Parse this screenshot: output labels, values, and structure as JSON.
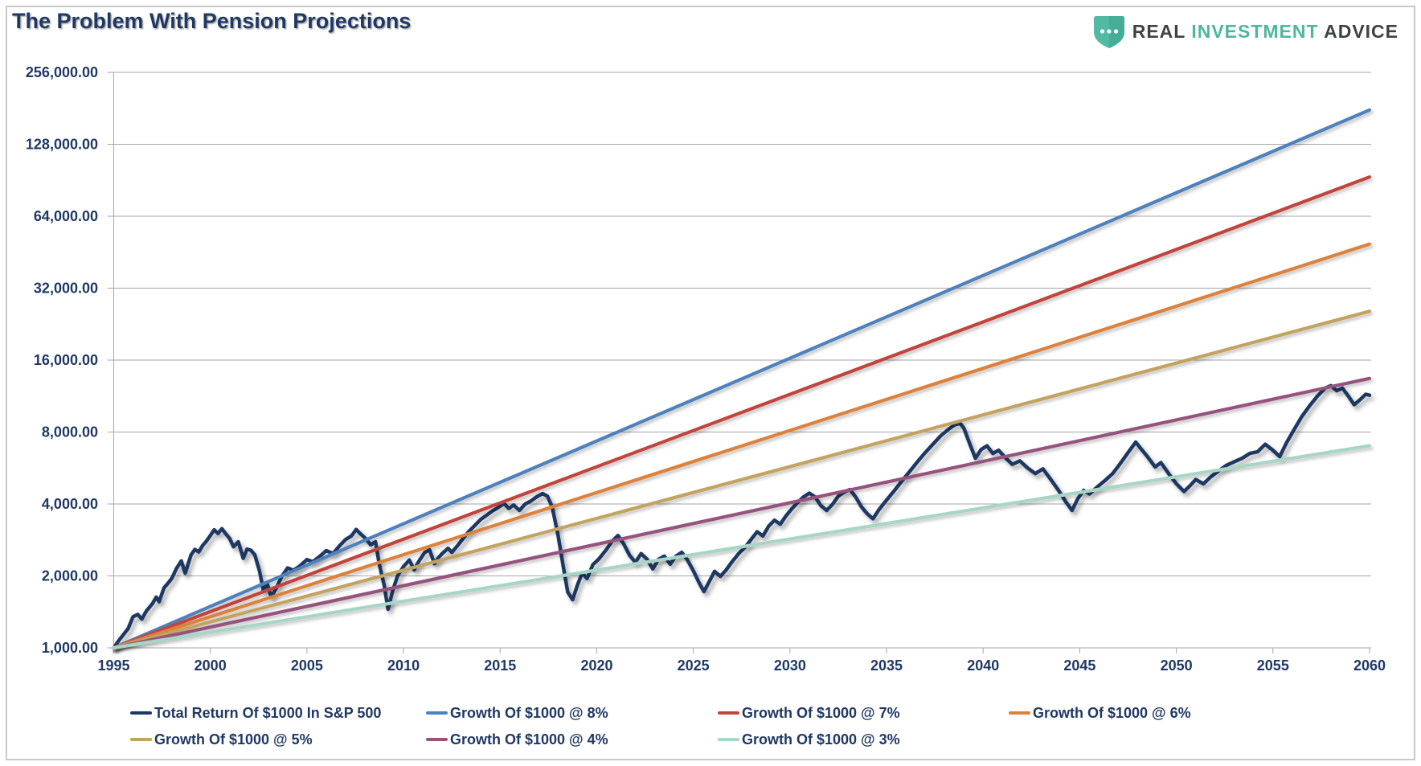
{
  "header": {
    "title": "The Problem With Pension Projections"
  },
  "logo": {
    "shield_icon": "shield-with-three-dots",
    "word1": "REAL",
    "word2": "INVESTMENT",
    "word3": "ADVICE",
    "teal": "#4FB79E",
    "dark": "#3F4245"
  },
  "colors": {
    "navy": "#1F3864",
    "blue": "#4F81BD",
    "red": "#C1453E",
    "orange": "#DC823C",
    "tan": "#C3A360",
    "purple": "#95537E",
    "teal": "#A7D6C6",
    "grid": "#A6A6A6",
    "axis_label": "#1F3864"
  },
  "chart_data": {
    "type": "line",
    "title": "The Problem With Pension Projections",
    "y_axis": {
      "scale": "log2",
      "range": [
        1000,
        256000
      ],
      "ticks": [
        {
          "v": 1000,
          "label": "1,000.00"
        },
        {
          "v": 2000,
          "label": "2,000.00"
        },
        {
          "v": 4000,
          "label": "4,000.00"
        },
        {
          "v": 8000,
          "label": "8,000.00"
        },
        {
          "v": 16000,
          "label": "16,000.00"
        },
        {
          "v": 32000,
          "label": "32,000.00"
        },
        {
          "v": 64000,
          "label": "64,000.00"
        },
        {
          "v": 128000,
          "label": "128,000.00"
        },
        {
          "v": 256000,
          "label": "256,000.00"
        }
      ]
    },
    "x_axis": {
      "range": [
        1995,
        2060
      ],
      "ticks": [
        1995,
        2000,
        2005,
        2010,
        2015,
        2020,
        2025,
        2030,
        2035,
        2040,
        2045,
        2050,
        2055,
        2060
      ]
    },
    "grid": true,
    "legend_position": "bottom",
    "series": [
      {
        "name": "Total Return Of $1000 In S&P 500",
        "color_key": "navy",
        "kind": "traced",
        "points": [
          [
            1995.0,
            1000
          ],
          [
            1995.25,
            1070
          ],
          [
            1995.5,
            1135
          ],
          [
            1995.75,
            1205
          ],
          [
            1996.0,
            1350
          ],
          [
            1996.25,
            1380
          ],
          [
            1996.45,
            1320
          ],
          [
            1996.7,
            1430
          ],
          [
            1997.0,
            1530
          ],
          [
            1997.2,
            1630
          ],
          [
            1997.35,
            1560
          ],
          [
            1997.6,
            1780
          ],
          [
            1997.8,
            1860
          ],
          [
            1998.0,
            1950
          ],
          [
            1998.25,
            2150
          ],
          [
            1998.5,
            2310
          ],
          [
            1998.7,
            2050
          ],
          [
            1999.0,
            2450
          ],
          [
            1999.2,
            2580
          ],
          [
            1999.4,
            2520
          ],
          [
            1999.6,
            2680
          ],
          [
            1999.8,
            2800
          ],
          [
            2000.0,
            2950
          ],
          [
            2000.2,
            3120
          ],
          [
            2000.4,
            3010
          ],
          [
            2000.6,
            3150
          ],
          [
            2000.8,
            3000
          ],
          [
            2001.0,
            2870
          ],
          [
            2001.2,
            2650
          ],
          [
            2001.45,
            2780
          ],
          [
            2001.7,
            2370
          ],
          [
            2001.9,
            2590
          ],
          [
            2002.1,
            2560
          ],
          [
            2002.3,
            2450
          ],
          [
            2002.55,
            2090
          ],
          [
            2002.75,
            1730
          ],
          [
            2002.95,
            1850
          ],
          [
            2003.15,
            1630
          ],
          [
            2003.4,
            1770
          ],
          [
            2003.7,
            1990
          ],
          [
            2004.0,
            2160
          ],
          [
            2004.3,
            2110
          ],
          [
            2004.6,
            2190
          ],
          [
            2005.0,
            2340
          ],
          [
            2005.3,
            2290
          ],
          [
            2005.7,
            2430
          ],
          [
            2006.0,
            2550
          ],
          [
            2006.35,
            2480
          ],
          [
            2006.7,
            2680
          ],
          [
            2007.0,
            2840
          ],
          [
            2007.3,
            2940
          ],
          [
            2007.55,
            3130
          ],
          [
            2007.75,
            3010
          ],
          [
            2008.0,
            2890
          ],
          [
            2008.3,
            2700
          ],
          [
            2008.55,
            2780
          ],
          [
            2008.75,
            2230
          ],
          [
            2009.0,
            1830
          ],
          [
            2009.2,
            1450
          ],
          [
            2009.45,
            1750
          ],
          [
            2009.7,
            2010
          ],
          [
            2010.0,
            2190
          ],
          [
            2010.3,
            2330
          ],
          [
            2010.55,
            2120
          ],
          [
            2010.8,
            2310
          ],
          [
            2011.1,
            2510
          ],
          [
            2011.35,
            2570
          ],
          [
            2011.6,
            2250
          ],
          [
            2011.8,
            2380
          ],
          [
            2012.0,
            2480
          ],
          [
            2012.3,
            2610
          ],
          [
            2012.5,
            2510
          ],
          [
            2012.8,
            2680
          ],
          [
            2013.1,
            2880
          ],
          [
            2013.4,
            3080
          ],
          [
            2013.7,
            3260
          ],
          [
            2014.0,
            3450
          ],
          [
            2014.3,
            3590
          ],
          [
            2014.6,
            3740
          ],
          [
            2014.9,
            3870
          ],
          [
            2015.2,
            4020
          ],
          [
            2015.45,
            3830
          ],
          [
            2015.7,
            3960
          ],
          [
            2016.0,
            3760
          ],
          [
            2016.3,
            4000
          ],
          [
            2016.6,
            4120
          ],
          [
            2016.9,
            4290
          ],
          [
            2017.2,
            4420
          ],
          [
            2017.45,
            4310
          ],
          [
            2017.7,
            3870
          ],
          [
            2018.0,
            2950
          ],
          [
            2018.25,
            2230
          ],
          [
            2018.5,
            1710
          ],
          [
            2018.75,
            1590
          ],
          [
            2019.0,
            1830
          ],
          [
            2019.25,
            2060
          ],
          [
            2019.5,
            1950
          ],
          [
            2019.8,
            2230
          ],
          [
            2020.1,
            2350
          ],
          [
            2020.5,
            2580
          ],
          [
            2020.8,
            2800
          ],
          [
            2021.1,
            2950
          ],
          [
            2021.4,
            2720
          ],
          [
            2021.7,
            2440
          ],
          [
            2022.0,
            2280
          ],
          [
            2022.3,
            2480
          ],
          [
            2022.6,
            2350
          ],
          [
            2022.9,
            2140
          ],
          [
            2023.2,
            2350
          ],
          [
            2023.5,
            2420
          ],
          [
            2023.8,
            2240
          ],
          [
            2024.1,
            2420
          ],
          [
            2024.4,
            2510
          ],
          [
            2024.7,
            2330
          ],
          [
            2025.0,
            2100
          ],
          [
            2025.3,
            1870
          ],
          [
            2025.55,
            1720
          ],
          [
            2025.8,
            1880
          ],
          [
            2026.1,
            2090
          ],
          [
            2026.4,
            1990
          ],
          [
            2026.7,
            2120
          ],
          [
            2027.0,
            2290
          ],
          [
            2027.35,
            2480
          ],
          [
            2027.7,
            2650
          ],
          [
            2028.0,
            2850
          ],
          [
            2028.3,
            3060
          ],
          [
            2028.6,
            2940
          ],
          [
            2028.9,
            3230
          ],
          [
            2029.2,
            3420
          ],
          [
            2029.5,
            3290
          ],
          [
            2029.8,
            3570
          ],
          [
            2030.1,
            3820
          ],
          [
            2030.4,
            4060
          ],
          [
            2030.7,
            4280
          ],
          [
            2031.0,
            4440
          ],
          [
            2031.3,
            4280
          ],
          [
            2031.6,
            3940
          ],
          [
            2031.9,
            3760
          ],
          [
            2032.2,
            3980
          ],
          [
            2032.5,
            4310
          ],
          [
            2032.8,
            4480
          ],
          [
            2033.1,
            4600
          ],
          [
            2033.4,
            4280
          ],
          [
            2033.7,
            3890
          ],
          [
            2034.0,
            3640
          ],
          [
            2034.3,
            3470
          ],
          [
            2034.6,
            3780
          ],
          [
            2035.0,
            4150
          ],
          [
            2035.4,
            4550
          ],
          [
            2035.8,
            5000
          ],
          [
            2036.2,
            5480
          ],
          [
            2036.6,
            6010
          ],
          [
            2037.0,
            6560
          ],
          [
            2037.4,
            7110
          ],
          [
            2037.8,
            7710
          ],
          [
            2038.2,
            8210
          ],
          [
            2038.5,
            8550
          ],
          [
            2038.8,
            8720
          ],
          [
            2039.0,
            8310
          ],
          [
            2039.3,
            7160
          ],
          [
            2039.6,
            6210
          ],
          [
            2039.9,
            6760
          ],
          [
            2040.2,
            7010
          ],
          [
            2040.5,
            6510
          ],
          [
            2040.8,
            6710
          ],
          [
            2041.1,
            6310
          ],
          [
            2041.5,
            5860
          ],
          [
            2041.9,
            6060
          ],
          [
            2042.3,
            5660
          ],
          [
            2042.7,
            5360
          ],
          [
            2043.1,
            5610
          ],
          [
            2043.5,
            5060
          ],
          [
            2043.9,
            4560
          ],
          [
            2044.3,
            4060
          ],
          [
            2044.6,
            3760
          ],
          [
            2044.9,
            4210
          ],
          [
            2045.2,
            4560
          ],
          [
            2045.5,
            4410
          ],
          [
            2045.9,
            4710
          ],
          [
            2046.3,
            5010
          ],
          [
            2046.7,
            5360
          ],
          [
            2047.1,
            5910
          ],
          [
            2047.5,
            6560
          ],
          [
            2047.9,
            7260
          ],
          [
            2048.2,
            6760
          ],
          [
            2048.5,
            6310
          ],
          [
            2048.9,
            5710
          ],
          [
            2049.2,
            5960
          ],
          [
            2049.6,
            5360
          ],
          [
            2050.0,
            4860
          ],
          [
            2050.4,
            4510
          ],
          [
            2050.7,
            4760
          ],
          [
            2051.0,
            5060
          ],
          [
            2051.4,
            4860
          ],
          [
            2051.8,
            5210
          ],
          [
            2052.2,
            5510
          ],
          [
            2052.6,
            5810
          ],
          [
            2053.0,
            6010
          ],
          [
            2053.4,
            6210
          ],
          [
            2053.8,
            6510
          ],
          [
            2054.2,
            6610
          ],
          [
            2054.6,
            7110
          ],
          [
            2055.0,
            6710
          ],
          [
            2055.35,
            6310
          ],
          [
            2055.7,
            7210
          ],
          [
            2056.1,
            8210
          ],
          [
            2056.5,
            9310
          ],
          [
            2056.9,
            10310
          ],
          [
            2057.3,
            11310
          ],
          [
            2057.7,
            12210
          ],
          [
            2058.0,
            12510
          ],
          [
            2058.3,
            11910
          ],
          [
            2058.6,
            12210
          ],
          [
            2058.9,
            11310
          ],
          [
            2059.2,
            10410
          ],
          [
            2059.5,
            10910
          ],
          [
            2059.8,
            11510
          ],
          [
            2060.0,
            11410
          ]
        ]
      },
      {
        "name": "Growth Of $1000 @ 8%",
        "color_key": "blue",
        "kind": "compound",
        "rate_pct": 8,
        "start_value": 1000,
        "start_year": 1995,
        "end_year": 2060,
        "compounding": "monthly"
      },
      {
        "name": "Growth Of $1000 @ 7%",
        "color_key": "red",
        "kind": "compound",
        "rate_pct": 7,
        "start_value": 1000,
        "start_year": 1995,
        "end_year": 2060,
        "compounding": "monthly"
      },
      {
        "name": "Growth Of $1000 @ 6%",
        "color_key": "orange",
        "kind": "compound",
        "rate_pct": 6,
        "start_value": 1000,
        "start_year": 1995,
        "end_year": 2060,
        "compounding": "monthly"
      },
      {
        "name": "Growth Of $1000 @ 5%",
        "color_key": "tan",
        "kind": "compound",
        "rate_pct": 5,
        "start_value": 1000,
        "start_year": 1995,
        "end_year": 2060,
        "compounding": "monthly"
      },
      {
        "name": "Growth Of $1000 @ 4%",
        "color_key": "purple",
        "kind": "compound",
        "rate_pct": 4,
        "start_value": 1000,
        "start_year": 1995,
        "end_year": 2060,
        "compounding": "monthly"
      },
      {
        "name": "Growth Of $1000 @ 3%",
        "color_key": "teal",
        "kind": "compound",
        "rate_pct": 3,
        "start_value": 1000,
        "start_year": 1995,
        "end_year": 2060,
        "compounding": "monthly"
      }
    ],
    "legend_rows": [
      [
        0,
        1,
        2,
        3
      ],
      [
        4,
        5,
        6
      ]
    ]
  }
}
